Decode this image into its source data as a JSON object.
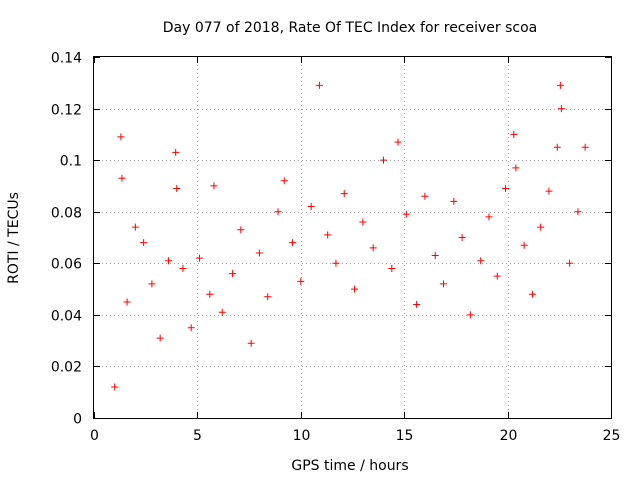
{
  "chart_data": {
    "type": "scatter",
    "title": "Day 077 of 2018, Rate Of TEC Index for receiver scoa",
    "xlabel": "GPS time / hours",
    "ylabel": "ROTI / TECUs",
    "xlim": [
      0,
      25
    ],
    "ylim": [
      0,
      0.14
    ],
    "x_ticks": [
      0,
      5,
      10,
      15,
      20,
      25
    ],
    "y_ticks": [
      0,
      0.02,
      0.04,
      0.06,
      0.08,
      0.1,
      0.12,
      0.14
    ],
    "x_tick_labels": [
      "0",
      "5",
      "10",
      "15",
      "20",
      "25"
    ],
    "y_tick_labels": [
      "0",
      "0.02",
      "0.04",
      "0.06",
      "0.08",
      "0.1",
      "0.12",
      "0.14"
    ],
    "grid": true,
    "marker": "plus",
    "color": "#ff0000",
    "series": [
      {
        "x": [
          1.0,
          1.3,
          1.35,
          1.6,
          2.0,
          2.4,
          2.8,
          3.2,
          3.6,
          3.95,
          4.0,
          4.3,
          4.7,
          5.1,
          5.6,
          5.8,
          6.2,
          6.7,
          7.1,
          7.6,
          8.0,
          8.4,
          8.9,
          9.2,
          9.6,
          10.0,
          10.5,
          10.9,
          11.3,
          11.7,
          12.1,
          12.6,
          13.0,
          13.5,
          14.0,
          14.4,
          14.7,
          15.1,
          15.6,
          16.0,
          16.5,
          16.9,
          17.4,
          17.8,
          18.2,
          18.7,
          19.1,
          19.5,
          19.9,
          20.3,
          20.4,
          20.8,
          21.2,
          21.6,
          22.0,
          22.4,
          22.55,
          22.6,
          23.0,
          23.4,
          23.75
        ],
        "y": [
          0.012,
          0.109,
          0.093,
          0.045,
          0.074,
          0.068,
          0.052,
          0.031,
          0.061,
          0.103,
          0.089,
          0.058,
          0.035,
          0.062,
          0.048,
          0.09,
          0.041,
          0.056,
          0.073,
          0.029,
          0.064,
          0.047,
          0.08,
          0.092,
          0.068,
          0.053,
          0.082,
          0.129,
          0.071,
          0.06,
          0.087,
          0.05,
          0.076,
          0.066,
          0.1,
          0.058,
          0.107,
          0.079,
          0.044,
          0.086,
          0.063,
          0.052,
          0.084,
          0.07,
          0.04,
          0.061,
          0.078,
          0.055,
          0.089,
          0.11,
          0.097,
          0.067,
          0.048,
          0.074,
          0.088,
          0.105,
          0.129,
          0.12,
          0.06,
          0.08,
          0.105
        ]
      }
    ]
  }
}
